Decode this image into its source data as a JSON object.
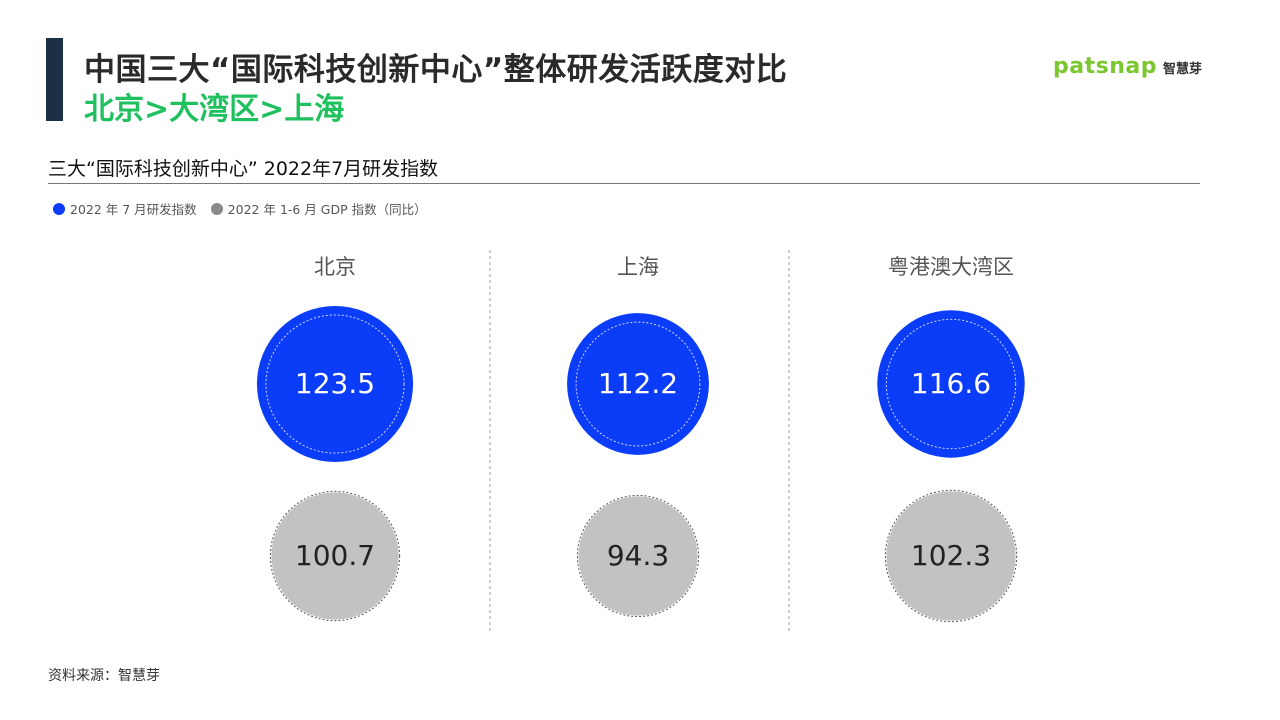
{
  "header": {
    "title": "中国三大“国际科技创新中心”整体研发活跃度对比",
    "subtitle": "北京>大湾区>上海"
  },
  "logo": {
    "word": "patsnap",
    "cn": "智慧芽",
    "color": "#7cc62f"
  },
  "section_title": "三大“国际科技创新中心”   2022年7月研发指数",
  "source": "资料来源：智慧芽",
  "colors": {
    "rd_index": "#0b3cf7",
    "gdp_index": "#c2c2c2",
    "title_green": "#1fc15e"
  },
  "chart_data": {
    "type": "bubble",
    "categories": [
      "北京",
      "上海",
      "粤港澳大湾区"
    ],
    "series": [
      {
        "name": "2022 年 7 月研发指数",
        "values": [
          123.5,
          112.2,
          116.6
        ],
        "color": "#0b3cf7"
      },
      {
        "name": "2022 年 1-6 月 GDP 指数（同比）",
        "values": [
          100.7,
          94.3,
          102.3
        ],
        "color": "#c2c2c2"
      }
    ]
  }
}
